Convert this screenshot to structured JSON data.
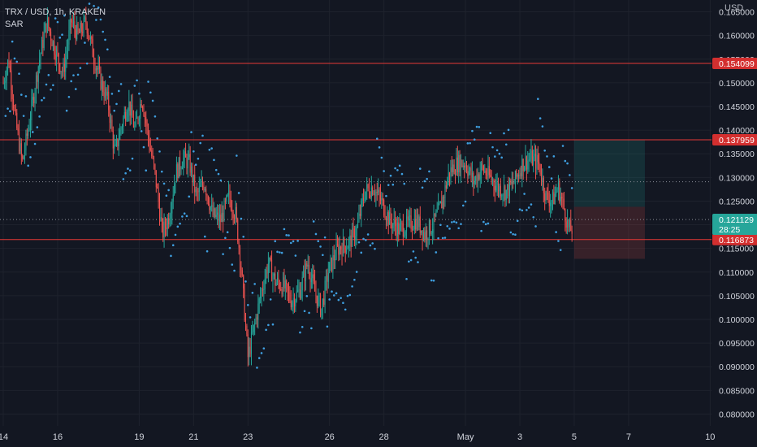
{
  "header": {
    "symbol_line": "TRX / USD, 1h, KRAKEN",
    "indicator": "SAR"
  },
  "currency": "USD",
  "colors": {
    "background": "#131722",
    "grid": "#1e222d",
    "up": "#26a69a",
    "down": "#ef5350",
    "sar": "#3f9fe0",
    "level_line": "#e53935",
    "axis_text": "#d1d4dc",
    "price_badge": "#26a69a",
    "level_badge": "#d32f2f",
    "target_zone": "#26a69a",
    "stop_zone": "#ef5350"
  },
  "chart_data": {
    "type": "candlestick",
    "title": "TRX / USD, 1h, KRAKEN",
    "indicator": "SAR",
    "ylim": [
      0.0775,
      0.1675
    ],
    "y_ticks": [
      0.08,
      0.085,
      0.09,
      0.095,
      0.1,
      0.105,
      0.11,
      0.115,
      0.12,
      0.125,
      0.13,
      0.135,
      0.14,
      0.145,
      0.15,
      0.155,
      0.16,
      0.165
    ],
    "y_tick_labels": [
      "0.080000",
      "0.085000",
      "0.090000",
      "0.095000",
      "0.100000",
      "0.105000",
      "0.110000",
      "0.115000",
      "0.120000",
      "0.125000",
      "0.130000",
      "0.135000",
      "0.140000",
      "0.145000",
      "0.150000",
      "0.155000",
      "0.160000",
      "0.165000"
    ],
    "x_ticks": [
      {
        "label": "14",
        "t": 0
      },
      {
        "label": "16",
        "t": 2
      },
      {
        "label": "19",
        "t": 5
      },
      {
        "label": "21",
        "t": 7
      },
      {
        "label": "23",
        "t": 9
      },
      {
        "label": "26",
        "t": 12
      },
      {
        "label": "28",
        "t": 14
      },
      {
        "label": "May",
        "t": 17
      },
      {
        "label": "3",
        "t": 19
      },
      {
        "label": "5",
        "t": 21
      },
      {
        "label": "7",
        "t": 23
      },
      {
        "label": "10",
        "t": 26
      }
    ],
    "t_range": [
      -0.12,
      26.05
    ],
    "price_path": [
      [
        0,
        0.15
      ],
      [
        0.2,
        0.155
      ],
      [
        0.45,
        0.142
      ],
      [
        0.7,
        0.133
      ],
      [
        1.0,
        0.143
      ],
      [
        1.3,
        0.154
      ],
      [
        1.6,
        0.163
      ],
      [
        1.9,
        0.157
      ],
      [
        2.2,
        0.152
      ],
      [
        2.5,
        0.163
      ],
      [
        2.75,
        0.16
      ],
      [
        3.05,
        0.163
      ],
      [
        3.35,
        0.155
      ],
      [
        3.6,
        0.15
      ],
      [
        3.85,
        0.146
      ],
      [
        4.1,
        0.135
      ],
      [
        4.35,
        0.141
      ],
      [
        4.6,
        0.146
      ],
      [
        4.85,
        0.14
      ],
      [
        5.1,
        0.147
      ],
      [
        5.35,
        0.138
      ],
      [
        5.6,
        0.13
      ],
      [
        5.85,
        0.118
      ],
      [
        6.1,
        0.122
      ],
      [
        6.35,
        0.131
      ],
      [
        6.6,
        0.134
      ],
      [
        6.85,
        0.133
      ],
      [
        7.1,
        0.126
      ],
      [
        7.4,
        0.129
      ],
      [
        7.7,
        0.122
      ],
      [
        8.0,
        0.121
      ],
      [
        8.3,
        0.126
      ],
      [
        8.55,
        0.122
      ],
      [
        8.75,
        0.111
      ],
      [
        9.0,
        0.092
      ],
      [
        9.25,
        0.099
      ],
      [
        9.5,
        0.106
      ],
      [
        9.75,
        0.112
      ],
      [
        10.0,
        0.108
      ],
      [
        10.3,
        0.107
      ],
      [
        10.6,
        0.104
      ],
      [
        10.9,
        0.106
      ],
      [
        11.2,
        0.112
      ],
      [
        11.45,
        0.106
      ],
      [
        11.7,
        0.102
      ],
      [
        11.95,
        0.11
      ],
      [
        12.3,
        0.115
      ],
      [
        12.7,
        0.116
      ],
      [
        13.0,
        0.119
      ],
      [
        13.3,
        0.127
      ],
      [
        13.6,
        0.128
      ],
      [
        13.9,
        0.125
      ],
      [
        14.2,
        0.121
      ],
      [
        14.55,
        0.119
      ],
      [
        14.9,
        0.12
      ],
      [
        15.2,
        0.121
      ],
      [
        15.5,
        0.118
      ],
      [
        15.8,
        0.12
      ],
      [
        16.1,
        0.124
      ],
      [
        16.4,
        0.131
      ],
      [
        16.7,
        0.133
      ],
      [
        17.0,
        0.133
      ],
      [
        17.3,
        0.129
      ],
      [
        17.6,
        0.132
      ],
      [
        17.9,
        0.13
      ],
      [
        18.2,
        0.128
      ],
      [
        18.5,
        0.127
      ],
      [
        18.8,
        0.129
      ],
      [
        19.1,
        0.133
      ],
      [
        19.4,
        0.134
      ],
      [
        19.7,
        0.133
      ],
      [
        19.95,
        0.126
      ],
      [
        20.2,
        0.125
      ],
      [
        20.4,
        0.128
      ],
      [
        20.6,
        0.124
      ],
      [
        20.8,
        0.119
      ],
      [
        20.95,
        0.119
      ]
    ],
    "horizontal_levels": [
      {
        "price": 0.154099,
        "label": "0.154099"
      },
      {
        "price": 0.137959,
        "label": "0.137959"
      },
      {
        "price": 0.116873,
        "label": "0.116873"
      }
    ],
    "dotted_lines": [
      0.1291,
      0.1211
    ],
    "current_price": {
      "value": 0.121129,
      "label": "0.121129",
      "countdown": "28:25"
    },
    "position_tool": {
      "t_start": 21.0,
      "t_end": 23.6,
      "entry": 0.1238,
      "target": 0.138,
      "stop": 0.1128
    }
  }
}
